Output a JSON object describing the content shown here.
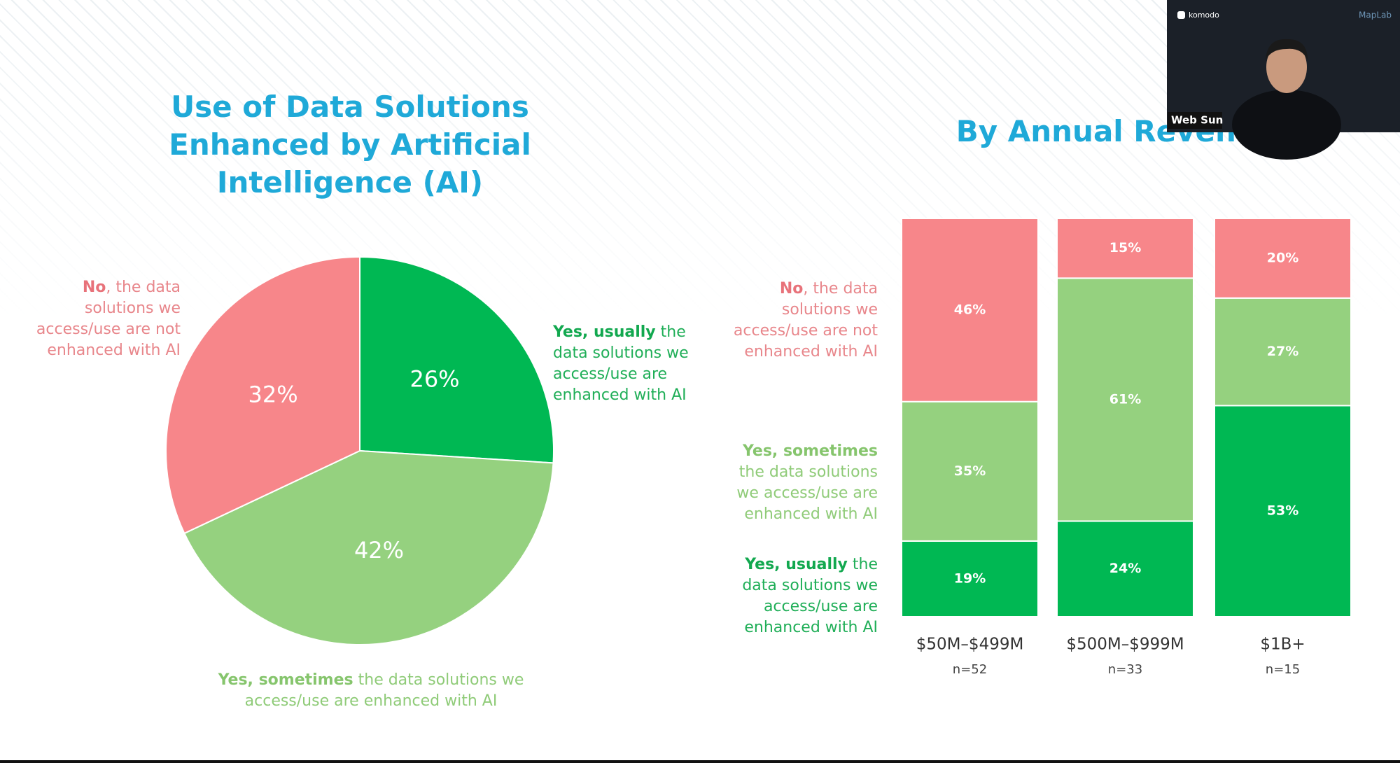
{
  "chart_data": [
    {
      "type": "pie",
      "title": "Use of Data Solutions Enhanced by Artificial Intelligence (AI)",
      "categories": [
        {
          "lead": "Yes, usually",
          "text": " the data solutions we access/use are enhanced with AI"
        },
        {
          "lead": "Yes, sometimes",
          "text": " the data solutions we access/use are enhanced with AI"
        },
        {
          "lead": "No",
          "text": ", the data solutions we access/use are not enhanced with AI"
        }
      ],
      "values": [
        26,
        42,
        32
      ],
      "value_labels": [
        "26%",
        "42%",
        "32%"
      ],
      "colors": [
        "#00b853",
        "#95d17f",
        "#f7868a"
      ]
    },
    {
      "type": "stacked_bar",
      "title": "By Annual Revenue",
      "categories": [
        "$50M–$499M",
        "$500M–$999M",
        "$1B+"
      ],
      "sample_sizes": [
        "n=52",
        "n=33",
        "n=15"
      ],
      "ylim": [
        0,
        100
      ],
      "series": [
        {
          "name": {
            "lead": "Yes, usually",
            "text": " the data solutions we access/use are enhanced with AI"
          },
          "color": "#00b853",
          "values": [
            19,
            24,
            53
          ],
          "value_labels": [
            "19%",
            "24%",
            "53%"
          ]
        },
        {
          "name": {
            "lead": "Yes, sometimes",
            "text": " the data solutions we access/use are enhanced with AI"
          },
          "color": "#95d17f",
          "values": [
            35,
            61,
            27
          ],
          "value_labels": [
            "35%",
            "61%",
            "27%"
          ]
        },
        {
          "name": {
            "lead": "No",
            "text": ", the data solutions we access/use are not enhanced with AI"
          },
          "color": "#f7868a",
          "values": [
            46,
            15,
            20
          ],
          "value_labels": [
            "46%",
            "15%",
            "20%"
          ]
        }
      ]
    }
  ],
  "overlay": {
    "brand": "komodo",
    "partner": "MapLab",
    "speaker": "Web Sun"
  }
}
